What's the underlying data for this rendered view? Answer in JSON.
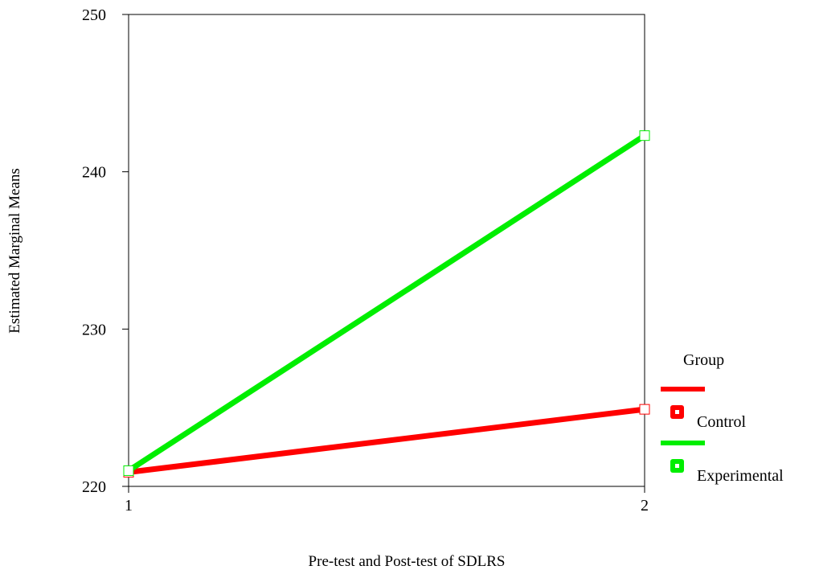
{
  "chart_data": {
    "type": "line",
    "x": [
      1,
      2
    ],
    "xlabel": "Pre-test and Post-test of SDLRS",
    "ylabel": "Estimated Marginal Means",
    "xlim": [
      1,
      2
    ],
    "ylim": [
      220,
      250
    ],
    "x_ticks": [
      "1",
      "2"
    ],
    "y_ticks": [
      "220",
      "230",
      "240",
      "250"
    ],
    "grid": false,
    "legend_title": "Group",
    "legend_position": "right",
    "series": [
      {
        "name": "Control",
        "values": [
          220.9,
          224.9
        ],
        "color": "#ff0000"
      },
      {
        "name": "Experimental",
        "values": [
          221.0,
          242.3
        ],
        "color": "#00ee00"
      }
    ]
  }
}
